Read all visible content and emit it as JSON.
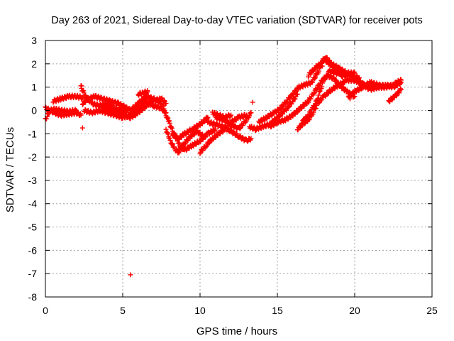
{
  "chart_data": {
    "type": "scatter",
    "title": "Day 263 of 2021, Sidereal Day-to-day VTEC variation (SDTVAR) for receiver pots",
    "xlabel": "GPS time / hours",
    "ylabel": "SDTVAR / TECUs",
    "xlim": [
      0,
      25
    ],
    "ylim": [
      -8,
      3
    ],
    "xticks": [
      0,
      5,
      10,
      15,
      20,
      25
    ],
    "yticks": [
      -8,
      -7,
      -6,
      -5,
      -4,
      -3,
      -2,
      -1,
      0,
      1,
      2,
      3
    ],
    "grid": true,
    "marker": "+",
    "color": "#ff0000",
    "series": [
      {
        "name": "pots",
        "tracks": [
          [
            [
              0.0,
              -0.4
            ],
            [
              0.3,
              0.0
            ],
            [
              0.6,
              -0.1
            ],
            [
              1.0,
              -0.2
            ],
            [
              1.5,
              -0.15
            ],
            [
              2.0,
              -0.1
            ],
            [
              2.3,
              -0.2
            ]
          ],
          [
            [
              0.0,
              0.1
            ],
            [
              0.3,
              0.0
            ],
            [
              0.6,
              0.05
            ],
            [
              1.0,
              0.0
            ],
            [
              1.5,
              -0.05
            ],
            [
              2.0,
              0.0
            ]
          ],
          [
            [
              0.5,
              0.4
            ],
            [
              1.0,
              0.5
            ],
            [
              1.5,
              0.6
            ],
            [
              2.0,
              0.6
            ],
            [
              2.4,
              0.55
            ]
          ],
          [
            [
              2.3,
              1.0
            ],
            [
              2.6,
              0.6
            ],
            [
              3.0,
              0.3
            ],
            [
              3.5,
              0.2
            ],
            [
              4.0,
              0.1
            ],
            [
              4.5,
              -0.05
            ],
            [
              5.0,
              -0.2
            ],
            [
              5.5,
              -0.3
            ],
            [
              6.0,
              -0.1
            ],
            [
              6.5,
              0.2
            ],
            [
              7.0,
              0.4
            ],
            [
              7.5,
              0.5
            ],
            [
              7.8,
              0.3
            ]
          ],
          [
            [
              2.4,
              0.3
            ],
            [
              2.8,
              0.5
            ],
            [
              3.2,
              0.6
            ],
            [
              3.7,
              0.5
            ],
            [
              4.2,
              0.4
            ],
            [
              4.7,
              0.3
            ],
            [
              5.0,
              0.2
            ],
            [
              5.5,
              0.0
            ],
            [
              6.0,
              0.3
            ],
            [
              6.5,
              0.6
            ],
            [
              7.0,
              0.5
            ],
            [
              7.5,
              0.3
            ]
          ],
          [
            [
              2.5,
              0.0
            ],
            [
              3.0,
              -0.1
            ],
            [
              3.5,
              0.0
            ],
            [
              4.0,
              -0.1
            ],
            [
              4.5,
              -0.2
            ],
            [
              5.0,
              -0.3
            ],
            [
              5.5,
              -0.2
            ],
            [
              6.0,
              0.1
            ],
            [
              6.5,
              0.4
            ],
            [
              7.0,
              0.2
            ],
            [
              7.5,
              0.1
            ],
            [
              7.8,
              -0.1
            ]
          ],
          [
            [
              3.5,
              0.2
            ],
            [
              4.0,
              0.3
            ],
            [
              4.5,
              0.1
            ],
            [
              5.0,
              0.0
            ],
            [
              5.2,
              -0.1
            ]
          ],
          [
            [
              6.0,
              0.7
            ],
            [
              6.3,
              0.75
            ],
            [
              6.6,
              0.8
            ]
          ],
          [
            [
              7.6,
              0.2
            ],
            [
              7.8,
              -0.2
            ],
            [
              8.0,
              -0.5
            ],
            [
              8.3,
              -1.0
            ],
            [
              8.7,
              -1.5
            ],
            [
              9.0,
              -1.7
            ],
            [
              9.5,
              -1.5
            ],
            [
              10.0,
              -1.3
            ],
            [
              10.5,
              -1.0
            ],
            [
              11.0,
              -0.8
            ]
          ],
          [
            [
              7.8,
              -0.8
            ],
            [
              8.0,
              -1.2
            ],
            [
              8.3,
              -1.6
            ],
            [
              8.6,
              -1.8
            ],
            [
              9.0,
              -1.4
            ],
            [
              9.4,
              -1.1
            ],
            [
              9.8,
              -0.9
            ],
            [
              10.2,
              -1.1
            ]
          ],
          [
            [
              8.2,
              -1.0
            ],
            [
              8.6,
              -1.2
            ],
            [
              9.0,
              -1.0
            ],
            [
              9.5,
              -0.8
            ],
            [
              10.0,
              -0.6
            ],
            [
              10.5,
              -0.3
            ]
          ],
          [
            [
              10.0,
              -1.8
            ],
            [
              10.4,
              -1.5
            ],
            [
              10.8,
              -1.2
            ],
            [
              11.2,
              -1.0
            ],
            [
              11.6,
              -0.8
            ],
            [
              12.0,
              -0.5
            ],
            [
              12.5,
              -0.3
            ],
            [
              13.0,
              -0.2
            ]
          ],
          [
            [
              10.5,
              -0.5
            ],
            [
              11.0,
              -0.6
            ],
            [
              11.5,
              -0.7
            ],
            [
              12.0,
              -0.9
            ],
            [
              12.5,
              -1.1
            ],
            [
              13.0,
              -1.3
            ],
            [
              13.3,
              -1.2
            ]
          ],
          [
            [
              11.0,
              -0.3
            ],
            [
              11.5,
              -0.4
            ],
            [
              12.0,
              -0.6
            ],
            [
              12.5,
              -0.8
            ],
            [
              13.0,
              -0.4
            ],
            [
              13.3,
              -0.1
            ]
          ],
          [
            [
              10.8,
              -0.1
            ],
            [
              11.2,
              -0.2
            ],
            [
              11.6,
              -0.3
            ],
            [
              12.0,
              -0.2
            ]
          ],
          [
            [
              13.2,
              -0.7
            ],
            [
              13.6,
              -0.8
            ],
            [
              14.0,
              -0.7
            ],
            [
              14.5,
              -0.6
            ],
            [
              15.0,
              -0.3
            ],
            [
              15.5,
              0.0
            ],
            [
              16.0,
              0.4
            ],
            [
              16.3,
              0.7
            ]
          ],
          [
            [
              13.8,
              -0.5
            ],
            [
              14.3,
              -0.3
            ],
            [
              14.8,
              -0.1
            ],
            [
              15.2,
              0.1
            ],
            [
              15.6,
              0.4
            ],
            [
              16.0,
              0.7
            ],
            [
              16.4,
              1.0
            ],
            [
              16.8,
              1.1
            ],
            [
              17.2,
              1.2
            ],
            [
              17.6,
              1.6
            ],
            [
              18.0,
              2.2
            ],
            [
              18.4,
              2.0
            ],
            [
              18.8,
              1.7
            ],
            [
              19.2,
              1.5
            ],
            [
              19.8,
              1.5
            ],
            [
              20.3,
              1.4
            ]
          ],
          [
            [
              14.5,
              -0.7
            ],
            [
              15.0,
              -0.5
            ],
            [
              15.5,
              -0.4
            ],
            [
              16.0,
              -0.2
            ],
            [
              16.5,
              0.1
            ],
            [
              17.0,
              0.4
            ],
            [
              17.4,
              0.8
            ],
            [
              17.8,
              1.2
            ],
            [
              18.2,
              1.5
            ],
            [
              18.6,
              1.4
            ],
            [
              19.0,
              1.1
            ],
            [
              19.5,
              0.8
            ],
            [
              20.0,
              0.6
            ]
          ],
          [
            [
              16.3,
              -0.8
            ],
            [
              16.6,
              -0.6
            ],
            [
              17.0,
              -0.4
            ],
            [
              17.3,
              -0.1
            ],
            [
              17.6,
              0.3
            ],
            [
              18.0,
              0.6
            ],
            [
              18.5,
              0.9
            ],
            [
              19.0,
              1.1
            ],
            [
              19.5,
              1.3
            ],
            [
              20.0,
              1.3
            ],
            [
              20.5,
              1.1
            ],
            [
              21.0,
              0.9
            ],
            [
              21.5,
              1.0
            ],
            [
              22.0,
              1.1
            ],
            [
              22.5,
              1.0
            ],
            [
              23.0,
              1.2
            ]
          ],
          [
            [
              16.6,
              -0.5
            ],
            [
              17.0,
              -0.2
            ],
            [
              17.3,
              0.1
            ],
            [
              17.6,
              0.5
            ],
            [
              17.8,
              0.9
            ],
            [
              18.0,
              1.3
            ],
            [
              18.4,
              1.7
            ],
            [
              18.8,
              1.6
            ],
            [
              19.3,
              1.6
            ],
            [
              19.8,
              1.5
            ],
            [
              20.2,
              1.3
            ],
            [
              20.6,
              1.1
            ],
            [
              21.0,
              1.0
            ],
            [
              21.5,
              1.0
            ],
            [
              22.0,
              1.0
            ],
            [
              22.5,
              1.1
            ],
            [
              23.0,
              1.3
            ]
          ],
          [
            [
              17.0,
              1.5
            ],
            [
              17.4,
              1.8
            ],
            [
              17.8,
              2.0
            ],
            [
              18.1,
              2.3
            ],
            [
              18.5,
              2.0
            ],
            [
              19.0,
              1.8
            ],
            [
              19.5,
              1.6
            ],
            [
              20.0,
              1.6
            ]
          ],
          [
            [
              19.6,
              0.6
            ],
            [
              20.0,
              0.8
            ],
            [
              20.5,
              1.0
            ],
            [
              21.0,
              1.2
            ],
            [
              21.5,
              1.1
            ],
            [
              22.0,
              1.0
            ],
            [
              22.5,
              1.1
            ],
            [
              23.0,
              1.3
            ]
          ],
          [
            [
              22.2,
              0.4
            ],
            [
              22.6,
              0.6
            ],
            [
              23.0,
              0.9
            ]
          ]
        ],
        "points": [
          [
            2.35,
            1.05
          ],
          [
            2.4,
            -0.75
          ],
          [
            5.5,
            -7.05
          ],
          [
            13.4,
            0.35
          ],
          [
            6.6,
            0.85
          ],
          [
            19.7,
            0.5
          ],
          [
            17.9,
            1.9
          ]
        ]
      }
    ]
  }
}
